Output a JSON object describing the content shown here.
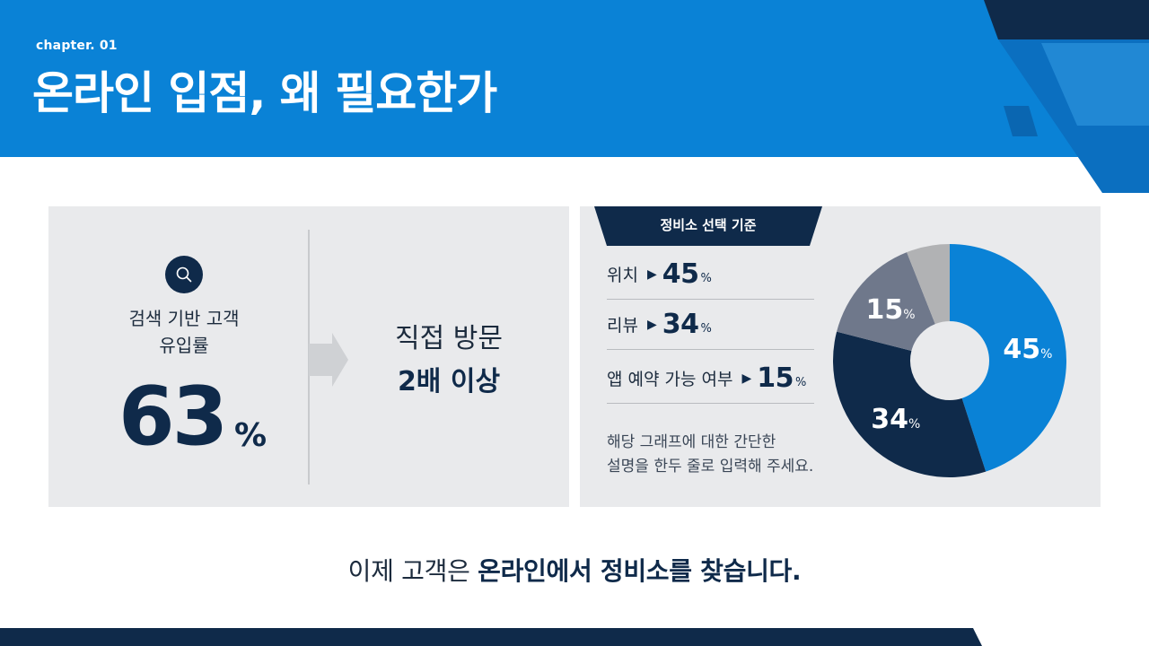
{
  "header": {
    "chapter": "chapter. 01",
    "title": "온라인 입점, 왜 필요한가"
  },
  "left_panel": {
    "icon": "search-icon",
    "metric_label_lines": [
      "검색 기반 고객",
      "유입률"
    ],
    "metric_value": "63",
    "metric_unit": "%",
    "visit_line1": "직접 방문",
    "visit_line2": "2배 이상"
  },
  "right_panel": {
    "tab_title": "정비소 선택 기준",
    "criteria": [
      {
        "label": "위치",
        "value": "45",
        "unit": "%"
      },
      {
        "label": "리뷰",
        "value": "34",
        "unit": "%"
      },
      {
        "label": "앱 예약 가능 여부",
        "value": "15",
        "unit": "%"
      }
    ],
    "description_lines": [
      "해당 그래프에 대한 간단한",
      "설명을 한두 줄로 입력해 주세요."
    ]
  },
  "chart_data": {
    "type": "pie",
    "categories": [
      "",
      "",
      "",
      ""
    ],
    "values": [
      45,
      34,
      15,
      6
    ],
    "data_labels": [
      "45",
      "34",
      "15",
      ""
    ],
    "unit": "%",
    "colors": [
      "#0a82d6",
      "#0f2a4a",
      "#6f788b",
      "#b1b2b4"
    ]
  },
  "tagline": {
    "plain": "이제 고객은 ",
    "bold": "온라인에서 정비소를 찾습니다."
  },
  "colors": {
    "primary_blue": "#0a82d6",
    "navy": "#0f2a4a",
    "panel_gray": "#e9eaec"
  }
}
